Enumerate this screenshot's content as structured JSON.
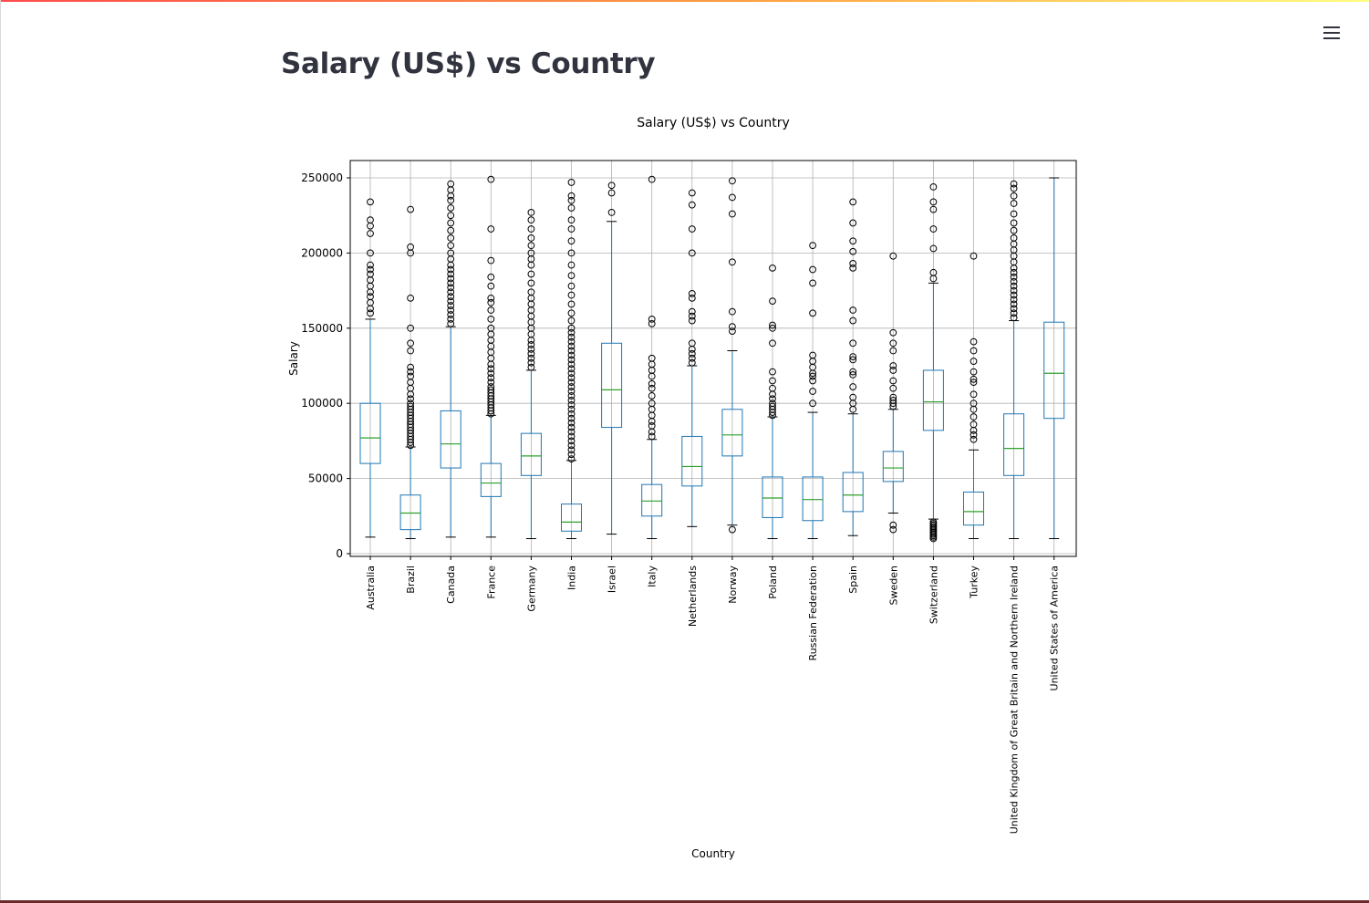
{
  "app": {
    "menu_icon": "hamburger-menu-icon",
    "accent_gradient": [
      "#ff4b4b",
      "#ff9f43",
      "#fffd80"
    ]
  },
  "header": {
    "title": "Salary (US$) vs Country"
  },
  "chart_data": {
    "type": "boxplot",
    "title": "Salary (US$) vs Country",
    "xlabel": "Country",
    "ylabel": "Salary",
    "ylim": [
      0,
      262000
    ],
    "yticks": [
      0,
      50000,
      100000,
      150000,
      200000,
      250000
    ],
    "grid": true,
    "colors": {
      "box": "#1f77b4",
      "median": "#2ca02c",
      "flier": "#000000",
      "grid": "#b0b0b0"
    },
    "categories": [
      "Australia",
      "Brazil",
      "Canada",
      "France",
      "Germany",
      "India",
      "Israel",
      "Italy",
      "Netherlands",
      "Norway",
      "Poland",
      "Russian Federation",
      "Spain",
      "Sweden",
      "Switzerland",
      "Turkey",
      "United Kingdom of Great Britain and Northern Ireland",
      "United States of America"
    ],
    "boxes": [
      {
        "name": "Australia",
        "whislo": 11000,
        "q1": 60000,
        "med": 77000,
        "q3": 100000,
        "whishi": 156000,
        "fliers": [
          160000,
          163000,
          167000,
          171000,
          174000,
          178000,
          182000,
          186000,
          189000,
          192000,
          200000,
          213000,
          218000,
          222000,
          234000
        ]
      },
      {
        "name": "Brazil",
        "whislo": 10000,
        "q1": 16000,
        "med": 27000,
        "q3": 39000,
        "whishi": 71000,
        "fliers": [
          72000,
          74000,
          76000,
          78000,
          80000,
          82000,
          84000,
          86000,
          88000,
          90000,
          92000,
          94000,
          96000,
          98000,
          100000,
          103000,
          106000,
          110000,
          114000,
          118000,
          121000,
          124000,
          135000,
          140000,
          150000,
          170000,
          200000,
          204000,
          229000
        ]
      },
      {
        "name": "Canada",
        "whislo": 11000,
        "q1": 57000,
        "med": 73000,
        "q3": 95000,
        "whishi": 151000,
        "fliers": [
          153000,
          156000,
          159000,
          162000,
          165000,
          168000,
          171000,
          174000,
          177000,
          180000,
          183000,
          186000,
          189000,
          192000,
          196000,
          200000,
          205000,
          210000,
          215000,
          220000,
          225000,
          230000,
          235000,
          238000,
          242000,
          246000
        ]
      },
      {
        "name": "France",
        "whislo": 11000,
        "q1": 38000,
        "med": 47000,
        "q3": 60000,
        "whishi": 92000,
        "fliers": [
          93000,
          95000,
          97000,
          99000,
          101000,
          103000,
          105000,
          107000,
          109000,
          111000,
          114000,
          117000,
          120000,
          123000,
          126000,
          130000,
          134000,
          138000,
          142000,
          146000,
          150000,
          156000,
          162000,
          167000,
          170000,
          178000,
          184000,
          195000,
          216000,
          249000
        ]
      },
      {
        "name": "Germany",
        "whislo": 10000,
        "q1": 52000,
        "med": 65000,
        "q3": 80000,
        "whishi": 122000,
        "fliers": [
          124000,
          127000,
          130000,
          133000,
          136000,
          139000,
          142000,
          146000,
          150000,
          154000,
          158000,
          162000,
          166000,
          170000,
          174000,
          180000,
          186000,
          192000,
          196000,
          200000,
          205000,
          210000,
          216000,
          222000,
          227000
        ]
      },
      {
        "name": "India",
        "whislo": 10000,
        "q1": 15000,
        "med": 21000,
        "q3": 33000,
        "whishi": 62000,
        "fliers": [
          63000,
          66000,
          69000,
          72000,
          75000,
          78000,
          81000,
          84000,
          87000,
          90000,
          93000,
          96000,
          99000,
          102000,
          105000,
          108000,
          111000,
          114000,
          117000,
          120000,
          123000,
          126000,
          129000,
          132000,
          135000,
          138000,
          141000,
          144000,
          147000,
          150000,
          155000,
          160000,
          166000,
          172000,
          178000,
          185000,
          192000,
          200000,
          208000,
          216000,
          222000,
          230000,
          235000,
          238000,
          247000
        ]
      },
      {
        "name": "Israel",
        "whislo": 13000,
        "q1": 84000,
        "med": 109000,
        "q3": 140000,
        "whishi": 221000,
        "fliers": [
          227000,
          240000,
          245000
        ]
      },
      {
        "name": "Italy",
        "whislo": 10000,
        "q1": 25000,
        "med": 35000,
        "q3": 46000,
        "whishi": 76000,
        "fliers": [
          78000,
          81000,
          85000,
          88000,
          92000,
          96000,
          100000,
          105000,
          110000,
          113000,
          118000,
          122000,
          126000,
          130000,
          153000,
          156000,
          249000
        ]
      },
      {
        "name": "Netherlands",
        "whislo": 18000,
        "q1": 45000,
        "med": 58000,
        "q3": 78000,
        "whishi": 125000,
        "fliers": [
          127000,
          130000,
          133000,
          136000,
          140000,
          155000,
          158000,
          161000,
          170000,
          173000,
          200000,
          216000,
          232000,
          240000
        ]
      },
      {
        "name": "Norway",
        "whislo": 19000,
        "q1": 65000,
        "med": 79000,
        "q3": 96000,
        "whishi": 135000,
        "fliers": [
          16000,
          148000,
          151000,
          161000,
          194000,
          226000,
          237000,
          248000
        ]
      },
      {
        "name": "Poland",
        "whislo": 10000,
        "q1": 24000,
        "med": 37000,
        "q3": 51000,
        "whishi": 91000,
        "fliers": [
          92000,
          94000,
          96000,
          98000,
          100000,
          103000,
          106000,
          110000,
          115000,
          121000,
          140000,
          150000,
          152000,
          168000,
          190000
        ]
      },
      {
        "name": "Russian Federation",
        "whislo": 10000,
        "q1": 22000,
        "med": 36000,
        "q3": 51000,
        "whishi": 94000,
        "fliers": [
          100000,
          108000,
          115000,
          118000,
          120000,
          124000,
          128000,
          132000,
          160000,
          180000,
          189000,
          205000
        ]
      },
      {
        "name": "Spain",
        "whislo": 12000,
        "q1": 28000,
        "med": 39000,
        "q3": 54000,
        "whishi": 93000,
        "fliers": [
          96000,
          100000,
          104000,
          111000,
          119000,
          121000,
          129000,
          131000,
          140000,
          155000,
          162000,
          190000,
          193000,
          201000,
          208000,
          220000,
          234000
        ]
      },
      {
        "name": "Sweden",
        "whislo": 27000,
        "q1": 48000,
        "med": 57000,
        "q3": 68000,
        "whishi": 96000,
        "fliers": [
          16000,
          19000,
          98000,
          100000,
          102000,
          104000,
          110000,
          115000,
          122000,
          125000,
          135000,
          140000,
          147000,
          198000
        ]
      },
      {
        "name": "Switzerland",
        "whislo": 23000,
        "q1": 82000,
        "med": 101000,
        "q3": 122000,
        "whishi": 180000,
        "fliers": [
          10000,
          11000,
          12000,
          13000,
          14000,
          15000,
          16000,
          17000,
          18000,
          19000,
          20000,
          21000,
          183000,
          187000,
          203000,
          216000,
          229000,
          234000,
          244000
        ]
      },
      {
        "name": "Turkey",
        "whislo": 10000,
        "q1": 19000,
        "med": 28000,
        "q3": 41000,
        "whishi": 69000,
        "fliers": [
          76000,
          79000,
          82000,
          86000,
          91000,
          96000,
          100000,
          106000,
          114000,
          116000,
          121000,
          128000,
          135000,
          141000,
          198000
        ]
      },
      {
        "name": "United Kingdom of Great Britain and Northern Ireland",
        "whislo": 10000,
        "q1": 52000,
        "med": 70000,
        "q3": 93000,
        "whishi": 155000,
        "fliers": [
          157000,
          160000,
          163000,
          166000,
          169000,
          172000,
          175000,
          178000,
          181000,
          184000,
          187000,
          190000,
          194000,
          198000,
          202000,
          206000,
          210000,
          215000,
          220000,
          226000,
          233000,
          238000,
          243000,
          246000
        ]
      },
      {
        "name": "United States of America",
        "whislo": 10000,
        "q1": 90000,
        "med": 120000,
        "q3": 154000,
        "whishi": 250000,
        "fliers": []
      }
    ]
  }
}
